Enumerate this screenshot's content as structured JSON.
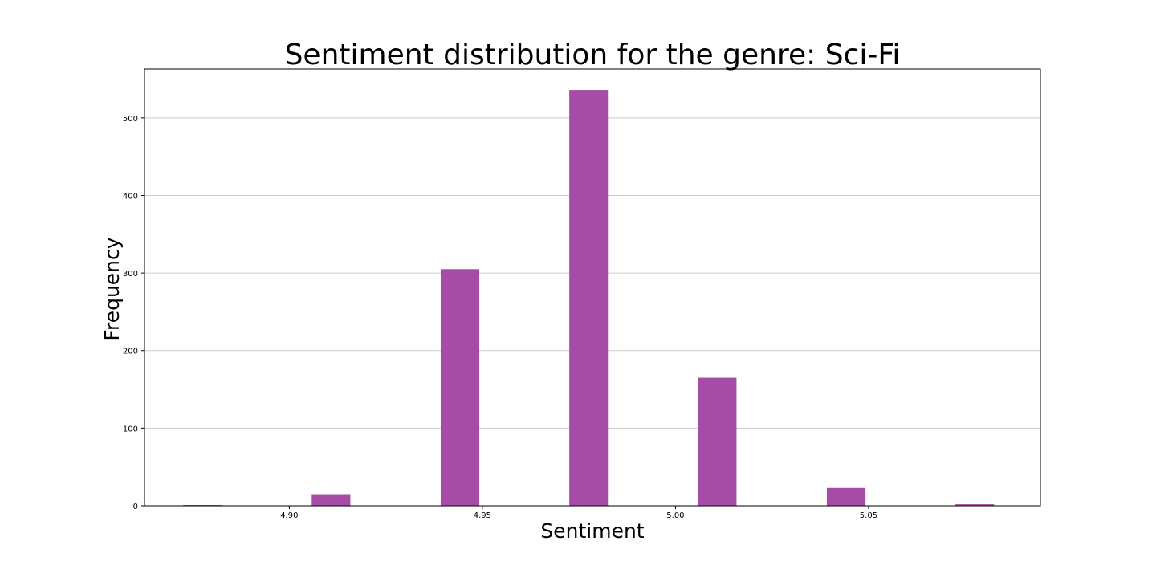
{
  "chart_data": {
    "type": "bar",
    "title": "Sentiment distribution for the genre: Sci-Fi",
    "xlabel": "Sentiment",
    "ylabel": "Frequency",
    "bar_color": "#a64ca6",
    "grid": "horizontal",
    "xlim": [
      4.8625,
      5.0945
    ],
    "ylim": [
      0,
      563
    ],
    "xticks": [
      4.9,
      4.95,
      5.0,
      5.05
    ],
    "xtick_labels": [
      "4.90",
      "4.95",
      "5.00",
      "5.05"
    ],
    "yticks": [
      0,
      100,
      200,
      300,
      400,
      500
    ],
    "ytick_labels": [
      "0",
      "100",
      "200",
      "300",
      "400",
      "500"
    ],
    "bar_width": 0.01,
    "bars": [
      {
        "x": 4.8775,
        "value": 1
      },
      {
        "x": 4.9108,
        "value": 15
      },
      {
        "x": 4.9442,
        "value": 305
      },
      {
        "x": 4.9775,
        "value": 536
      },
      {
        "x": 5.0108,
        "value": 165
      },
      {
        "x": 5.0442,
        "value": 23
      },
      {
        "x": 5.0775,
        "value": 2
      }
    ]
  }
}
